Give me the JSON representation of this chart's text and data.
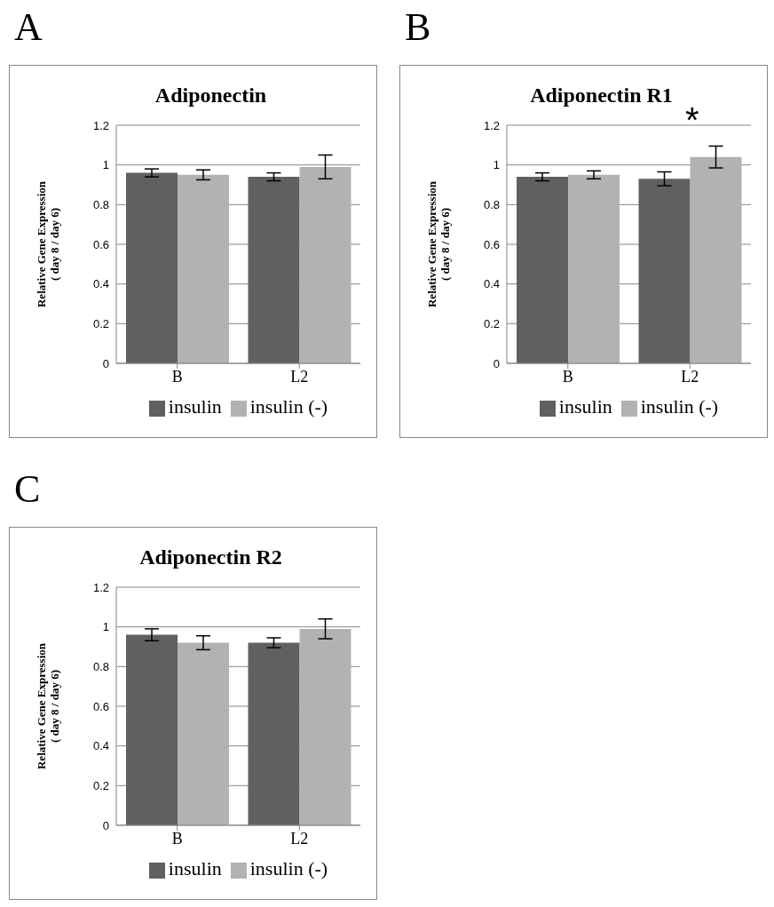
{
  "chart_data": [
    {
      "type": "bar",
      "title": "Adiponectin",
      "ylabel": "Relative Gene Expression\n( day 8 / day 6)",
      "categories": [
        "B",
        "L2"
      ],
      "series": [
        {
          "name": "insulin",
          "color": "#606060",
          "values": [
            0.96,
            0.94
          ],
          "errors": [
            0.02,
            0.02
          ]
        },
        {
          "name": "insulin (-)",
          "color": "#b2b2b2",
          "values": [
            0.95,
            0.99
          ],
          "errors": [
            0.025,
            0.06
          ]
        }
      ],
      "ylim": [
        0,
        1.2
      ],
      "yticks": [
        0,
        0.2,
        0.4,
        0.6,
        0.8,
        1,
        1.2
      ],
      "grid": "y",
      "legend": "bottom",
      "annotations": [
        "A"
      ]
    },
    {
      "type": "bar",
      "title": "Adiponectin R1",
      "ylabel": "Relative Gene Expression\n( day 8 / day 6)",
      "categories": [
        "B",
        "L2"
      ],
      "series": [
        {
          "name": "insulin",
          "color": "#606060",
          "values": [
            0.94,
            0.93
          ],
          "errors": [
            0.02,
            0.035
          ]
        },
        {
          "name": "insulin (-)",
          "color": "#b2b2b2",
          "values": [
            0.95,
            1.04
          ],
          "errors": [
            0.02,
            0.055
          ]
        }
      ],
      "ylim": [
        0,
        1.2
      ],
      "yticks": [
        0,
        0.2,
        0.4,
        0.6,
        0.8,
        1,
        1.2
      ],
      "grid": "y",
      "legend": "bottom",
      "annotations": [
        "B",
        "*"
      ]
    },
    {
      "type": "bar",
      "title": "Adiponectin R2",
      "ylabel": "Relative Gene Expression\n( day 8 / day 6)",
      "categories": [
        "B",
        "L2"
      ],
      "series": [
        {
          "name": "insulin",
          "color": "#606060",
          "values": [
            0.96,
            0.92
          ],
          "errors": [
            0.03,
            0.025
          ]
        },
        {
          "name": "insulin (-)",
          "color": "#b2b2b2",
          "values": [
            0.92,
            0.99
          ],
          "errors": [
            0.035,
            0.05
          ]
        }
      ],
      "ylim": [
        0,
        1.2
      ],
      "yticks": [
        0,
        0.2,
        0.4,
        0.6,
        0.8,
        1,
        1.2
      ],
      "grid": "y",
      "legend": "bottom",
      "annotations": [
        "C"
      ]
    }
  ]
}
